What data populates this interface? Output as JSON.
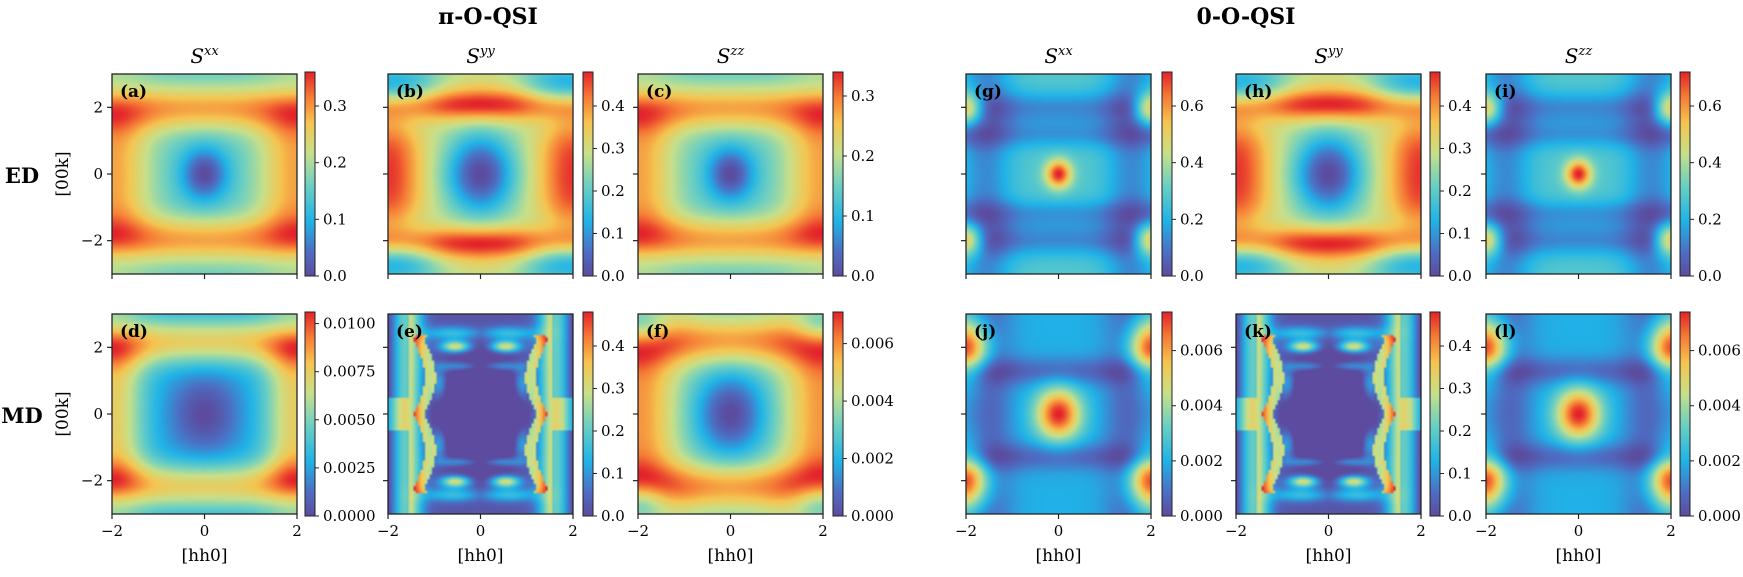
{
  "group_titles": [
    "π-O-QSI",
    "0-O-QSI"
  ],
  "row_labels": [
    "ED",
    "MD"
  ],
  "chart_data": [
    {
      "panel": "(a)",
      "title": "S^xx",
      "type": "heatmap",
      "group": "π-O-QSI",
      "row": "ED",
      "ylabel": "[00k]",
      "xticks": [],
      "yticks": [
        -2,
        0,
        2
      ],
      "xlim": [
        -2,
        2
      ],
      "ylim": [
        -3,
        3
      ],
      "colorbar": {
        "range": [
          0.0,
          0.36
        ],
        "ticks": [
          "0.0",
          "0.1",
          "0.2",
          "0.3"
        ]
      }
    },
    {
      "panel": "(b)",
      "title": "S^yy",
      "type": "heatmap",
      "group": "π-O-QSI",
      "row": "ED",
      "xticks": [],
      "xlim": [
        -2,
        2
      ],
      "ylim": [
        -3,
        3
      ],
      "colorbar": {
        "range": [
          0.0,
          0.48
        ],
        "ticks": [
          "0.0",
          "0.1",
          "0.2",
          "0.3",
          "0.4"
        ]
      }
    },
    {
      "panel": "(c)",
      "title": "S^zz",
      "type": "heatmap",
      "group": "π-O-QSI",
      "row": "ED",
      "xticks": [],
      "xlim": [
        -2,
        2
      ],
      "ylim": [
        -3,
        3
      ],
      "colorbar": {
        "range": [
          0.0,
          0.34
        ],
        "ticks": [
          "0.0",
          "0.1",
          "0.2",
          "0.3"
        ]
      }
    },
    {
      "panel": "(d)",
      "title": "",
      "type": "heatmap",
      "group": "π-O-QSI",
      "row": "MD",
      "ylabel": "[00k]",
      "xlabel": "[hh0]",
      "xticks": [
        -2,
        0,
        2
      ],
      "yticks": [
        -2,
        0,
        2
      ],
      "xlim": [
        -2,
        2
      ],
      "ylim": [
        -3,
        3
      ],
      "colorbar": {
        "range": [
          0.0,
          0.0106
        ],
        "ticks": [
          "0.0000",
          "0.0025",
          "0.0050",
          "0.0075",
          "0.0100"
        ]
      }
    },
    {
      "panel": "(e)",
      "title": "",
      "type": "heatmap",
      "group": "π-O-QSI",
      "row": "MD",
      "xlabel": "[hh0]",
      "xticks": [
        -2,
        0,
        2
      ],
      "xlim": [
        -2,
        2
      ],
      "ylim": [
        -3,
        3
      ],
      "colorbar": {
        "range": [
          0.0,
          0.48
        ],
        "ticks": [
          "0.0",
          "0.1",
          "0.2",
          "0.3",
          "0.4"
        ]
      }
    },
    {
      "panel": "(f)",
      "title": "",
      "type": "heatmap",
      "group": "π-O-QSI",
      "row": "MD",
      "xlabel": "[hh0]",
      "xticks": [
        -2,
        0,
        2
      ],
      "xlim": [
        -2,
        2
      ],
      "ylim": [
        -3,
        3
      ],
      "colorbar": {
        "range": [
          0.0,
          0.0071
        ],
        "ticks": [
          "0.000",
          "0.002",
          "0.004",
          "0.006"
        ]
      }
    },
    {
      "panel": "(g)",
      "title": "S^xx",
      "type": "heatmap",
      "group": "0-O-QSI",
      "row": "ED",
      "xticks": [],
      "xlim": [
        -2,
        2
      ],
      "ylim": [
        -3,
        3
      ],
      "colorbar": {
        "range": [
          0.0,
          0.72
        ],
        "ticks": [
          "0.0",
          "0.2",
          "0.4",
          "0.6"
        ]
      }
    },
    {
      "panel": "(h)",
      "title": "S^yy",
      "type": "heatmap",
      "group": "0-O-QSI",
      "row": "ED",
      "xticks": [],
      "xlim": [
        -2,
        2
      ],
      "ylim": [
        -3,
        3
      ],
      "colorbar": {
        "range": [
          0.0,
          0.48
        ],
        "ticks": [
          "0.0",
          "0.1",
          "0.2",
          "0.3",
          "0.4"
        ]
      }
    },
    {
      "panel": "(i)",
      "title": "S^zz",
      "type": "heatmap",
      "group": "0-O-QSI",
      "row": "ED",
      "xticks": [],
      "xlim": [
        -2,
        2
      ],
      "ylim": [
        -3,
        3
      ],
      "colorbar": {
        "range": [
          0.0,
          0.72
        ],
        "ticks": [
          "0.0",
          "0.2",
          "0.4",
          "0.6"
        ]
      }
    },
    {
      "panel": "(j)",
      "title": "",
      "type": "heatmap",
      "group": "0-O-QSI",
      "row": "MD",
      "xlabel": "[hh0]",
      "xticks": [
        -2,
        0,
        2
      ],
      "xlim": [
        -2,
        2
      ],
      "ylim": [
        -3,
        3
      ],
      "colorbar": {
        "range": [
          0.0,
          0.0074
        ],
        "ticks": [
          "0.000",
          "0.002",
          "0.004",
          "0.006"
        ]
      }
    },
    {
      "panel": "(k)",
      "title": "",
      "type": "heatmap",
      "group": "0-O-QSI",
      "row": "MD",
      "xlabel": "[hh0]",
      "xticks": [
        -2,
        0,
        2
      ],
      "xlim": [
        -2,
        2
      ],
      "ylim": [
        -3,
        3
      ],
      "colorbar": {
        "range": [
          0.0,
          0.48
        ],
        "ticks": [
          "0.0",
          "0.1",
          "0.2",
          "0.3",
          "0.4"
        ]
      }
    },
    {
      "panel": "(l)",
      "title": "",
      "type": "heatmap",
      "group": "0-O-QSI",
      "row": "MD",
      "xlabel": "[hh0]",
      "xticks": [
        -2,
        0,
        2
      ],
      "xlim": [
        -2,
        2
      ],
      "ylim": [
        -3,
        3
      ],
      "colorbar": {
        "range": [
          0.0,
          0.0074
        ],
        "ticks": [
          "0.000",
          "0.002",
          "0.004",
          "0.006"
        ]
      }
    }
  ]
}
